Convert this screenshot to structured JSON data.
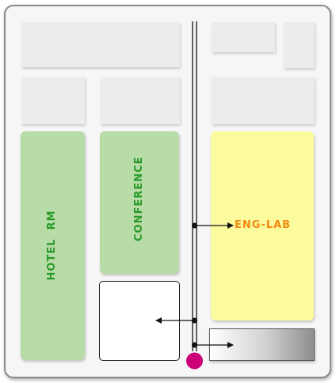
{
  "map": {
    "rooms": {
      "hotel_rm": {
        "label": "HOTEL  RM",
        "color": "#b8dca8"
      },
      "conference": {
        "label": "CONFERENCE",
        "color": "#b8dca8"
      },
      "eng_lab": {
        "label": "ENG-LAB",
        "color": "#fbfb9e"
      }
    },
    "colors": {
      "label_green": "#2a9a2a",
      "label_orange": "#f28a10",
      "marker": "#cc0077",
      "wall": "#8a8a8a"
    },
    "icons": {
      "location_marker": "location-marker-icon"
    }
  }
}
